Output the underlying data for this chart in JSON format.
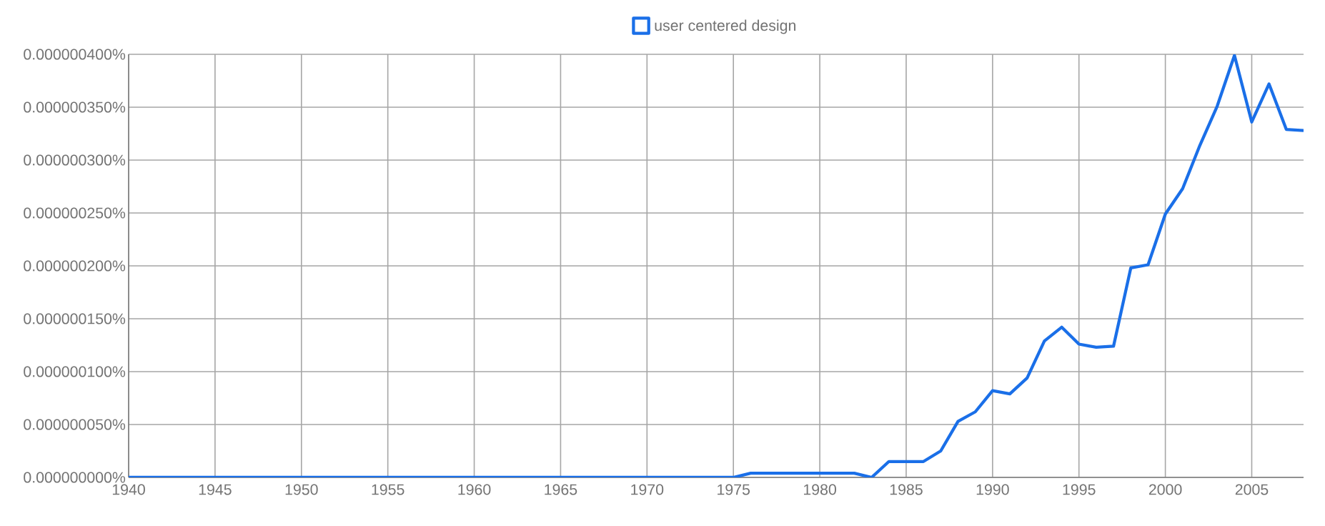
{
  "chart_data": {
    "type": "line",
    "x": [
      1940,
      1941,
      1942,
      1943,
      1944,
      1945,
      1946,
      1947,
      1948,
      1949,
      1950,
      1951,
      1952,
      1953,
      1954,
      1955,
      1956,
      1957,
      1958,
      1959,
      1960,
      1961,
      1962,
      1963,
      1964,
      1965,
      1966,
      1967,
      1968,
      1969,
      1970,
      1971,
      1972,
      1973,
      1974,
      1975,
      1976,
      1977,
      1978,
      1979,
      1980,
      1981,
      1982,
      1983,
      1984,
      1985,
      1986,
      1987,
      1988,
      1989,
      1990,
      1991,
      1992,
      1993,
      1994,
      1995,
      1996,
      1997,
      1998,
      1999,
      2000,
      2001,
      2002,
      2003,
      2004,
      2005,
      2006,
      2007,
      2008
    ],
    "series": [
      {
        "name": "user centered design",
        "color": "#1a6fe8",
        "values": [
          0,
          0,
          0,
          0,
          0,
          0,
          0,
          0,
          0,
          0,
          0,
          0,
          0,
          0,
          0,
          0,
          0,
          0,
          0,
          0,
          0,
          0,
          0,
          0,
          0,
          0,
          0,
          0,
          0,
          0,
          0,
          0,
          0,
          0,
          0,
          0,
          4e-09,
          4e-09,
          4e-09,
          4e-09,
          4e-09,
          4e-09,
          4e-09,
          0,
          1.5e-08,
          1.5e-08,
          1.5e-08,
          2.5e-08,
          5.3e-08,
          6.2e-08,
          8.2e-08,
          7.9e-08,
          9.4e-08,
          1.29e-07,
          1.42e-07,
          1.26e-07,
          1.23e-07,
          1.24e-07,
          1.98e-07,
          2.01e-07,
          2.49e-07,
          2.73e-07,
          3.14e-07,
          3.51e-07,
          3.99e-07,
          3.36e-07,
          3.72e-07,
          3.29e-07,
          3.28e-07
        ]
      }
    ],
    "xlim": [
      1940,
      2008
    ],
    "xticks": [
      1940,
      1945,
      1950,
      1955,
      1960,
      1965,
      1970,
      1975,
      1980,
      1985,
      1990,
      1995,
      2000,
      2005
    ],
    "ylim": [
      0,
      4e-07
    ],
    "yticks": [
      {
        "value": 0,
        "label": "0.000000000%"
      },
      {
        "value": 5e-08,
        "label": "0.000000050%"
      },
      {
        "value": 1e-07,
        "label": "0.000000100%"
      },
      {
        "value": 1.5e-07,
        "label": "0.000000150%"
      },
      {
        "value": 2e-07,
        "label": "0.000000200%"
      },
      {
        "value": 2.5e-07,
        "label": "0.000000250%"
      },
      {
        "value": 3e-07,
        "label": "0.000000300%"
      },
      {
        "value": 3.5e-07,
        "label": "0.000000350%"
      },
      {
        "value": 4e-07,
        "label": "0.000000400%"
      }
    ],
    "grid": true,
    "legend": "top",
    "marker": "none",
    "line_style": "solid"
  }
}
